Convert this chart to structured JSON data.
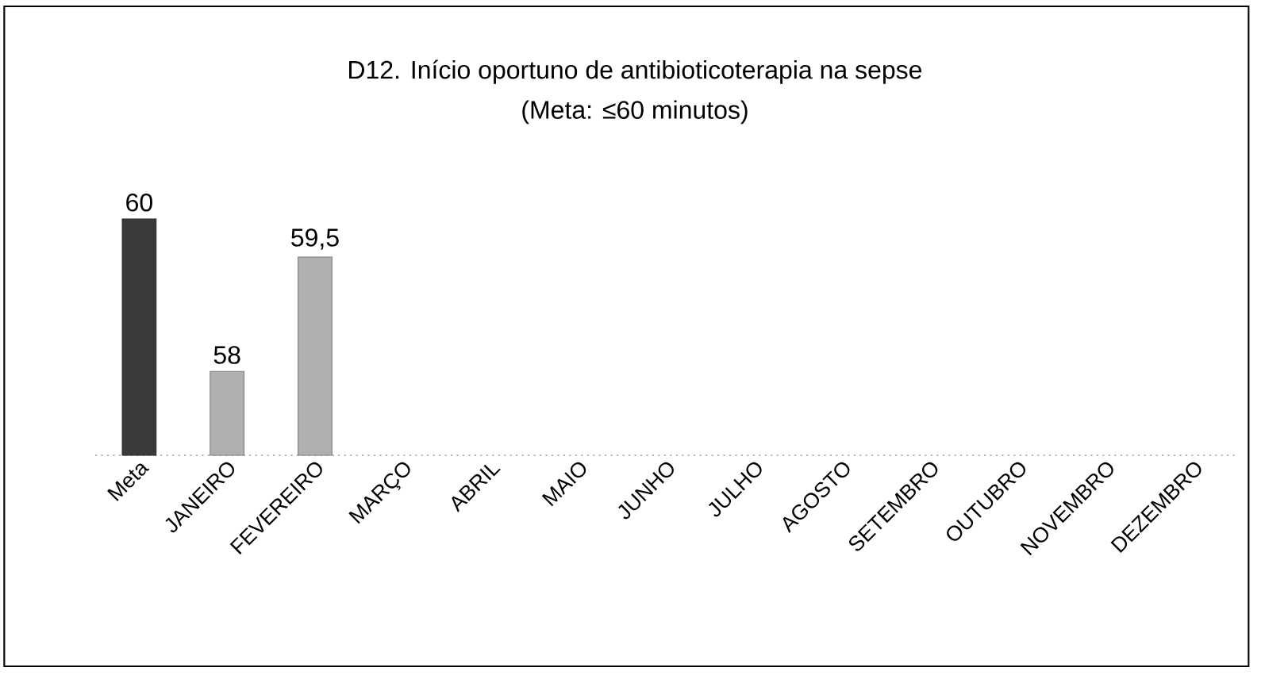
{
  "chart_data": {
    "type": "bar",
    "title": "D12. Início oportuno de antibioticoterapia na sepse",
    "subtitle": "(Meta: ≤60 minutos)",
    "categories": [
      "Meta",
      "JANEIRO",
      "FEVEREIRO",
      "MARÇO",
      "ABRIL",
      "MAIO",
      "JUNHO",
      "JULHO",
      "AGOSTO",
      "SETEMBRO",
      "OUTUBRO",
      "NOVEMBRO",
      "DEZEMBRO"
    ],
    "values": [
      60,
      58,
      59.5,
      null,
      null,
      null,
      null,
      null,
      null,
      null,
      null,
      null,
      null
    ],
    "colors": [
      "#3a3a3a",
      "#b0b0b0",
      "#b0b0b0",
      "#b0b0b0",
      "#b0b0b0",
      "#b0b0b0",
      "#b0b0b0",
      "#b0b0b0",
      "#b0b0b0",
      "#b0b0b0",
      "#b0b0b0",
      "#b0b0b0",
      "#b0b0b0"
    ],
    "value_labels": [
      "60",
      "58",
      "59,5",
      null,
      null,
      null,
      null,
      null,
      null,
      null,
      null,
      null,
      null
    ],
    "ylim": [
      56.9,
      60
    ]
  }
}
